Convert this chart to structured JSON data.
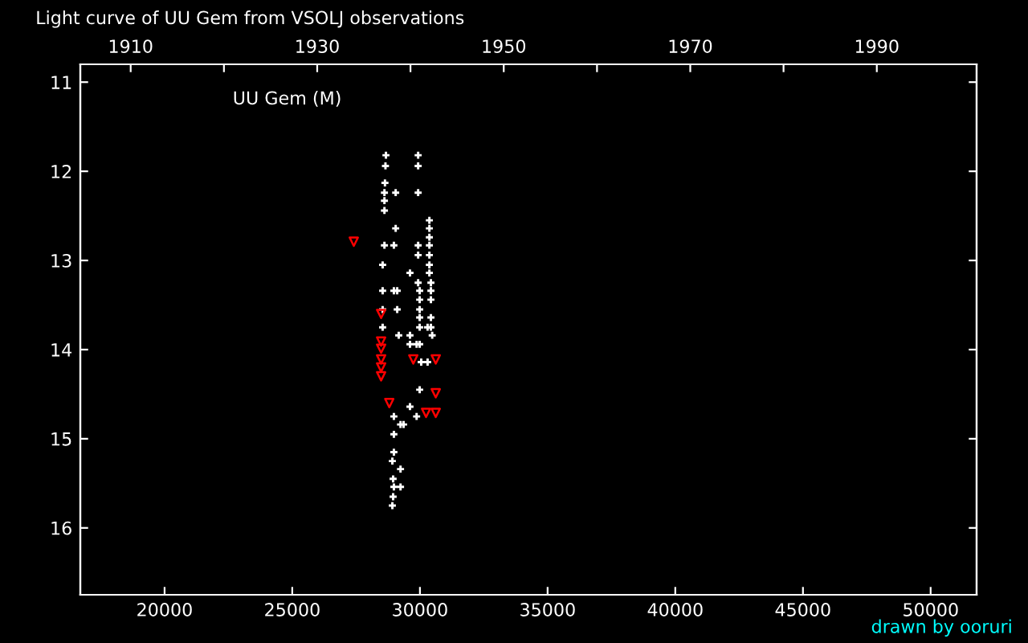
{
  "chart_data": {
    "type": "scatter",
    "title": "Light curve of UU Gem from VSOLJ observations",
    "annotations": [
      "UU Gem (M)",
      "drawn by ooruri"
    ],
    "xlim": [
      16700,
      51800
    ],
    "xticks": [
      20000,
      25000,
      30000,
      35000,
      40000,
      45000,
      50000
    ],
    "ylim": [
      16.75,
      10.8
    ],
    "yticks": [
      11,
      12,
      13,
      14,
      15,
      16
    ],
    "x2lim": [
      1904.6,
      2000.7
    ],
    "x2ticks": [
      1910,
      {
        "value": 1920,
        "label": null
      },
      1930,
      {
        "value": 1940,
        "label": null
      },
      1950,
      {
        "value": 1960,
        "label": null
      },
      1970,
      {
        "value": 1980,
        "label": null
      },
      1990
    ],
    "grid": false,
    "series": [
      {
        "color": "#ffffff",
        "marker": "cross",
        "x": [
          28670,
          29930,
          28650,
          29930,
          28630,
          28610,
          29050,
          29930,
          28610,
          28610,
          29050,
          30370,
          30370,
          30370,
          28610,
          28980,
          29930,
          30370,
          29930,
          30370,
          28540,
          30370,
          29610,
          30370,
          29930,
          30430,
          28540,
          28980,
          29110,
          29990,
          30430,
          29990,
          30430,
          28540,
          29110,
          29990,
          29990,
          30430,
          28540,
          29990,
          30300,
          30430,
          29170,
          29610,
          30480,
          29610,
          29870,
          29990,
          30050,
          30300,
          29990,
          29610,
          28980,
          29870,
          29240,
          29360,
          28980,
          28980,
          28920,
          29240,
          28950,
          28980,
          29240,
          28950,
          28920
        ],
        "values": [
          11.82,
          11.82,
          11.94,
          11.94,
          12.13,
          12.24,
          12.24,
          12.24,
          12.33,
          12.44,
          12.64,
          12.55,
          12.64,
          12.74,
          12.83,
          12.83,
          12.83,
          12.83,
          12.94,
          12.94,
          13.05,
          13.05,
          13.14,
          13.14,
          13.25,
          13.25,
          13.34,
          13.34,
          13.34,
          13.34,
          13.34,
          13.44,
          13.44,
          13.55,
          13.55,
          13.55,
          13.64,
          13.64,
          13.75,
          13.75,
          13.75,
          13.75,
          13.84,
          13.84,
          13.84,
          13.94,
          13.94,
          13.94,
          14.14,
          14.14,
          14.45,
          14.64,
          14.75,
          14.75,
          14.84,
          14.84,
          14.95,
          15.15,
          15.25,
          15.34,
          15.45,
          15.54,
          15.54,
          15.65,
          15.75
        ]
      },
      {
        "color": "#ff0000",
        "marker": "triangle",
        "x": [
          27410,
          28480,
          28480,
          28480,
          28480,
          28480,
          28480,
          29740,
          30620,
          30620,
          28800,
          30240,
          30620
        ],
        "values": [
          12.79,
          13.6,
          13.91,
          13.99,
          14.11,
          14.2,
          14.3,
          14.11,
          14.11,
          14.49,
          14.6,
          14.71,
          14.71
        ]
      }
    ]
  }
}
